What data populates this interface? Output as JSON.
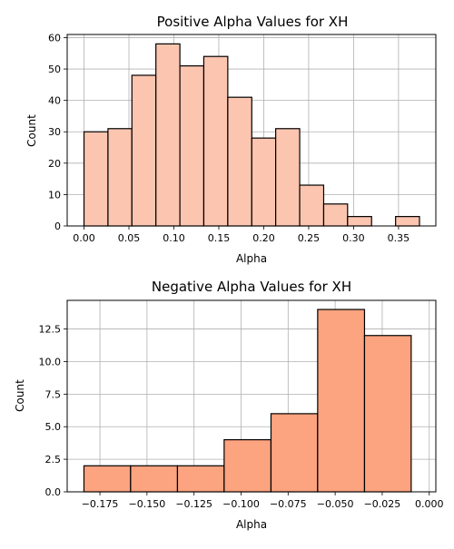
{
  "chart_data": [
    {
      "type": "bar",
      "title": "Positive Alpha Values for XH",
      "xlabel": "Alpha",
      "ylabel": "Count",
      "xlim": [
        -0.0187,
        0.3915
      ],
      "ylim": [
        0,
        61
      ],
      "grid": true,
      "xticks": [
        "0.00",
        "0.05",
        "0.10",
        "0.15",
        "0.20",
        "0.25",
        "0.30",
        "0.35"
      ],
      "yticks": [
        "0",
        "10",
        "20",
        "30",
        "40",
        "50",
        "60"
      ],
      "bar_color": "#fcc5b0",
      "edge_color": "#000000",
      "bins": [
        {
          "start": 0.0,
          "end": 0.0267,
          "count": 30
        },
        {
          "start": 0.0267,
          "end": 0.0533,
          "count": 31
        },
        {
          "start": 0.0533,
          "end": 0.08,
          "count": 48
        },
        {
          "start": 0.08,
          "end": 0.1067,
          "count": 58
        },
        {
          "start": 0.1067,
          "end": 0.1333,
          "count": 51
        },
        {
          "start": 0.1333,
          "end": 0.16,
          "count": 54
        },
        {
          "start": 0.16,
          "end": 0.1867,
          "count": 41
        },
        {
          "start": 0.1867,
          "end": 0.2133,
          "count": 28
        },
        {
          "start": 0.2133,
          "end": 0.24,
          "count": 31
        },
        {
          "start": 0.24,
          "end": 0.2667,
          "count": 13
        },
        {
          "start": 0.2667,
          "end": 0.2933,
          "count": 7
        },
        {
          "start": 0.2933,
          "end": 0.32,
          "count": 3
        },
        {
          "start": 0.32,
          "end": 0.3467,
          "count": 0
        },
        {
          "start": 0.3467,
          "end": 0.3733,
          "count": 3
        }
      ]
    },
    {
      "type": "bar",
      "title": "Negative Alpha Values for XH",
      "xlabel": "Alpha",
      "ylabel": "Count",
      "xlim": [
        -0.1924,
        0.0035
      ],
      "ylim": [
        0,
        14.7
      ],
      "grid": true,
      "xticks": [
        "−0.175",
        "−0.150",
        "−0.125",
        "−0.100",
        "−0.075",
        "−0.050",
        "−0.025",
        "0.000"
      ],
      "yticks": [
        "0.0",
        "2.5",
        "5.0",
        "7.5",
        "10.0",
        "12.5"
      ],
      "bar_color": "#fca37f",
      "edge_color": "#000000",
      "bins": [
        {
          "start": -0.1835,
          "end": -0.1587,
          "count": 2
        },
        {
          "start": -0.1587,
          "end": -0.1338,
          "count": 2
        },
        {
          "start": -0.1338,
          "end": -0.109,
          "count": 2
        },
        {
          "start": -0.109,
          "end": -0.0841,
          "count": 4
        },
        {
          "start": -0.0841,
          "end": -0.0593,
          "count": 6
        },
        {
          "start": -0.0593,
          "end": -0.0344,
          "count": 14
        },
        {
          "start": -0.0344,
          "end": -0.0096,
          "count": 12
        }
      ]
    }
  ]
}
